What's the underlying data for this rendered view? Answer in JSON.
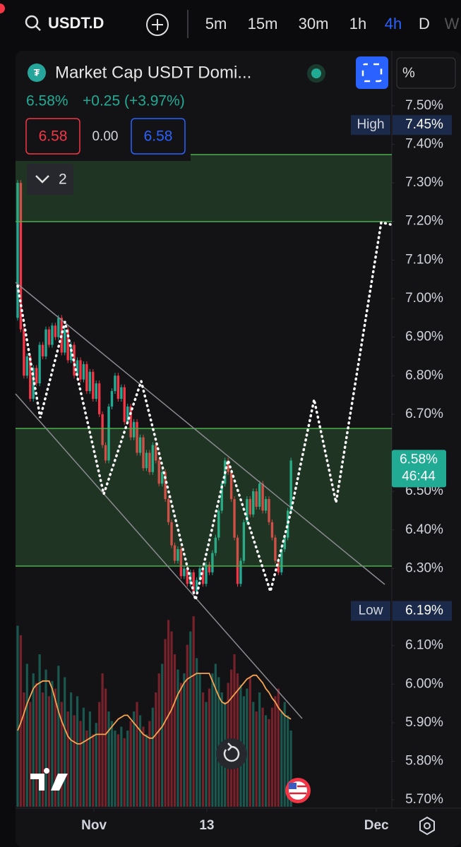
{
  "toolbar": {
    "symbol": "USDT.D",
    "intervals": [
      "5m",
      "15m",
      "30m",
      "1h",
      "4h",
      "D",
      "W"
    ],
    "active_interval": 4
  },
  "legend": {
    "title": "Market Cap USDT Domi...",
    "last": "6.58%",
    "change": "+0.25 (+3.97%)",
    "sell": "6.58",
    "spread": "0.00",
    "buy": "6.58",
    "indicators": "2"
  },
  "scale_mode": "%",
  "chart_data": {
    "type": "candlestick",
    "up_color": "#22ab94",
    "down_color": "#f23645",
    "ma_color": "#f7a350",
    "open": 6.95,
    "closes": [
      7.3,
      6.92,
      6.8,
      6.85,
      6.74,
      6.82,
      6.78,
      6.88,
      6.85,
      6.92,
      6.88,
      6.93,
      6.9,
      6.95,
      6.86,
      6.92,
      6.84,
      6.88,
      6.8,
      6.84,
      6.79,
      6.83,
      6.76,
      6.81,
      6.74,
      6.78,
      6.7,
      6.62,
      6.58,
      6.72,
      6.76,
      6.8,
      6.74,
      6.77,
      6.68,
      6.72,
      6.64,
      6.68,
      6.6,
      6.64,
      6.56,
      6.6,
      6.55,
      6.62,
      6.58,
      6.52,
      6.55,
      6.48,
      6.42,
      6.36,
      6.32,
      6.35,
      6.28,
      6.3,
      6.26,
      6.29,
      6.24,
      6.27,
      6.3,
      6.26,
      6.31,
      6.29,
      6.34,
      6.38,
      6.45,
      6.52,
      6.58,
      6.55,
      6.48,
      6.38,
      6.26,
      6.32,
      6.42,
      6.48,
      6.44,
      6.5,
      6.46,
      6.52,
      6.45,
      6.48,
      6.42,
      6.38,
      6.32,
      6.29,
      6.35,
      6.38,
      6.45,
      6.58
    ],
    "volumes": [
      95,
      90,
      60,
      75,
      55,
      70,
      65,
      80,
      60,
      72,
      58,
      66,
      62,
      74,
      55,
      68,
      50,
      60,
      48,
      58,
      45,
      52,
      40,
      50,
      38,
      44,
      55,
      70,
      62,
      50,
      45,
      40,
      38,
      42,
      36,
      40,
      45,
      50,
      55,
      48,
      42,
      38,
      45,
      52,
      60,
      70,
      75,
      88,
      98,
      92,
      80,
      72,
      65,
      70,
      85,
      92,
      100,
      78,
      70,
      60,
      55,
      62,
      70,
      75,
      68,
      60,
      55,
      65,
      72,
      80,
      70,
      64,
      58,
      62,
      68,
      55,
      50,
      60,
      52,
      48,
      46,
      52,
      58,
      62,
      50,
      55,
      48,
      40
    ],
    "volume_ma": [
      40,
      44,
      49,
      54,
      58,
      62,
      64,
      65,
      66,
      66,
      66,
      62,
      56,
      50,
      45,
      41,
      37,
      35,
      34,
      33,
      33,
      34,
      35,
      36,
      37,
      38,
      38,
      38,
      38,
      40,
      42,
      44,
      46,
      47,
      48,
      48,
      46,
      44,
      42,
      40,
      38,
      37,
      36,
      36,
      38,
      40,
      42,
      45,
      48,
      51,
      55,
      59,
      62,
      65,
      67,
      68,
      69,
      70,
      70,
      70,
      70,
      70,
      66,
      62,
      58,
      55,
      54,
      55,
      57,
      59,
      61,
      63,
      65,
      67,
      68,
      69,
      69,
      67,
      65,
      62,
      60,
      57,
      55,
      52,
      50,
      48,
      47,
      46
    ],
    "xlim": [
      -0.67,
      119.1
    ],
    "xticks": [
      {
        "value": 24.3,
        "label": "Nov"
      },
      {
        "value": 60.2,
        "label": "13"
      },
      {
        "value": 114.2,
        "label": "Dec"
      }
    ],
    "ylim": [
      5.682,
      7.637
    ],
    "yticks": [
      {
        "value": 7.5,
        "label": "7.50%"
      },
      {
        "value": 7.4,
        "label": "7.40%"
      },
      {
        "value": 7.3,
        "label": "7.30%"
      },
      {
        "value": 7.2,
        "label": "7.20%"
      },
      {
        "value": 7.1,
        "label": "7.10%"
      },
      {
        "value": 7.0,
        "label": "7.00%"
      },
      {
        "value": 6.9,
        "label": "6.90%"
      },
      {
        "value": 6.8,
        "label": "6.80%"
      },
      {
        "value": 6.7,
        "label": "6.70%"
      },
      {
        "value": 6.5,
        "label": "6.50%"
      },
      {
        "value": 6.4,
        "label": "6.40%"
      },
      {
        "value": 6.3,
        "label": "6.30%"
      },
      {
        "value": 6.1,
        "label": "6.10%"
      },
      {
        "value": 6.0,
        "label": "6.00%"
      },
      {
        "value": 5.9,
        "label": "5.90%"
      },
      {
        "value": 5.8,
        "label": "5.80%"
      },
      {
        "value": 5.7,
        "label": "5.70%"
      }
    ],
    "high_text": "High",
    "high": {
      "value": 7.45,
      "label": "7.45%"
    },
    "low_text": "Low",
    "low": {
      "value": 6.19,
      "label": "6.19%"
    },
    "last": {
      "value": 6.58,
      "label": "6.58%"
    },
    "countdown": "46:44"
  }
}
